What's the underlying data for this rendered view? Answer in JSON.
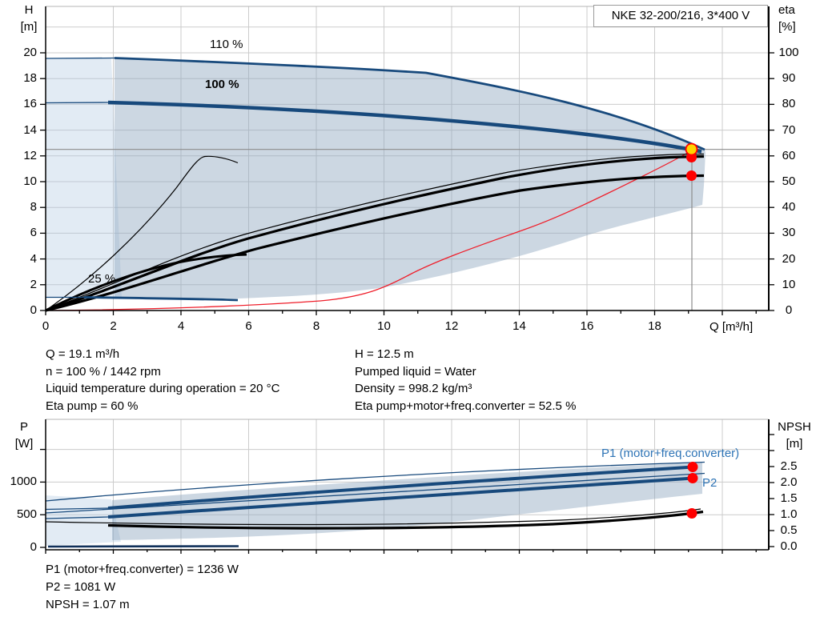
{
  "title_box": {
    "label": "NKE 32-200/216, 3*400 V"
  },
  "colors": {
    "curve_navy": "#17497c",
    "curve_black": "#000000",
    "curve_red": "#ef1f2b",
    "label_blue": "#2e74b6",
    "marker_red": "#ff0000",
    "marker_yellow": "#ffd400",
    "envelope_dark": "#cdd8e3",
    "envelope_light": "#e7eef6",
    "grid": "#cccccc",
    "duty_line_gray": "#8c8c8c"
  },
  "top_chart": {
    "y_left_title": [
      "H",
      "[m]"
    ],
    "y_right_title": [
      "eta",
      "[%]"
    ],
    "x_title": "Q [m³/h]",
    "y_left_ticks": [
      {
        "v": 0,
        "label": "0"
      },
      {
        "v": 2,
        "label": "2"
      },
      {
        "v": 4,
        "label": "4"
      },
      {
        "v": 6,
        "label": "6"
      },
      {
        "v": 8,
        "label": "8"
      },
      {
        "v": 10,
        "label": "10"
      },
      {
        "v": 12,
        "label": "12"
      },
      {
        "v": 14,
        "label": "14"
      },
      {
        "v": 16,
        "label": "16"
      },
      {
        "v": 18,
        "label": "18"
      },
      {
        "v": 20,
        "label": "20"
      }
    ],
    "y_right_ticks": [
      {
        "v": 0,
        "label": "0"
      },
      {
        "v": 10,
        "label": "10"
      },
      {
        "v": 20,
        "label": "20"
      },
      {
        "v": 30,
        "label": "30"
      },
      {
        "v": 40,
        "label": "40"
      },
      {
        "v": 50,
        "label": "50"
      },
      {
        "v": 60,
        "label": "60"
      },
      {
        "v": 70,
        "label": "70"
      },
      {
        "v": 80,
        "label": "80"
      },
      {
        "v": 90,
        "label": "90"
      },
      {
        "v": 100,
        "label": "100"
      }
    ],
    "x_ticks": [
      {
        "v": 0,
        "label": "0"
      },
      {
        "v": 2,
        "label": "2"
      },
      {
        "v": 4,
        "label": "4"
      },
      {
        "v": 6,
        "label": "6"
      },
      {
        "v": 8,
        "label": "8"
      },
      {
        "v": 10,
        "label": "10"
      },
      {
        "v": 12,
        "label": "12"
      },
      {
        "v": 14,
        "label": "14"
      },
      {
        "v": 16,
        "label": "16"
      },
      {
        "v": 18,
        "label": "18"
      }
    ],
    "curve_labels": {
      "speed_110": "110 %",
      "speed_100": "100 %",
      "speed_25": "25 %"
    }
  },
  "bottom_chart": {
    "y_left_title": [
      "P",
      "[W]"
    ],
    "y_right_title": [
      "NPSH",
      "[m]"
    ],
    "y_left_ticks": [
      {
        "v": 0,
        "label": "0"
      },
      {
        "v": 500,
        "label": "500"
      },
      {
        "v": 1000,
        "label": "1000"
      },
      {
        "v": 1500,
        "label": ""
      }
    ],
    "y_right_ticks": [
      {
        "v": 0,
        "label": "0.0"
      },
      {
        "v": 0.5,
        "label": "0.5"
      },
      {
        "v": 1,
        "label": "1.0"
      },
      {
        "v": 1.5,
        "label": "1.5"
      },
      {
        "v": 2,
        "label": "2.0"
      },
      {
        "v": 2.5,
        "label": "2.5"
      },
      {
        "v": 3,
        "label": ""
      },
      {
        "v": 3.5,
        "label": ""
      }
    ],
    "curve_labels": {
      "p1": "P1 (motor+freq.converter)",
      "p2": "P2"
    }
  },
  "info_top": {
    "left": [
      "Q = 19.1 m³/h",
      "n = 100 % / 1442 rpm",
      "Liquid temperature during operation = 20 °C",
      "Eta pump = 60 %"
    ],
    "right": [
      "H = 12.5 m",
      "Pumped liquid = Water",
      "Density = 998.2 kg/m³",
      "Eta pump+motor+freq.converter = 52.5 %"
    ]
  },
  "info_bottom": {
    "lines": [
      "P1 (motor+freq.converter) = 1236 W",
      "P2 = 1081 W",
      "NPSH = 1.07 m"
    ]
  },
  "chart_data": [
    {
      "type": "line",
      "title": "NKE 32-200/216, 3*400 V",
      "xlabel": "Q [m³/h]",
      "ylabel_left": "H [m]",
      "ylabel_right": "eta [%]",
      "x_range": [
        0,
        21.4
      ],
      "y_left_range": [
        0,
        23.6
      ],
      "y_right_range": [
        0,
        118
      ],
      "grid": true,
      "legend_position": "labels-on-curves",
      "series": [
        {
          "name": "H 110 %",
          "axis": "left",
          "color": "navy",
          "points": [
            [
              0,
              19.6
            ],
            [
              4,
              19.3
            ],
            [
              8,
              18.9
            ],
            [
              11.2,
              18.5
            ],
            [
              14,
              16.9
            ],
            [
              16,
              15.5
            ],
            [
              18,
              13.8
            ],
            [
              19.5,
              12.5
            ]
          ]
        },
        {
          "name": "H 100 %",
          "axis": "left",
          "color": "navy",
          "points": [
            [
              0,
              16.2
            ],
            [
              4,
              15.9
            ],
            [
              8,
              15.3
            ],
            [
              12,
              14.6
            ],
            [
              16,
              13.5
            ],
            [
              19.1,
              12.5
            ]
          ]
        },
        {
          "name": "H 25 %",
          "axis": "left",
          "color": "navy",
          "points": [
            [
              0,
              1.0
            ],
            [
              2,
              1.0
            ],
            [
              4,
              0.9
            ],
            [
              5.7,
              0.8
            ]
          ]
        },
        {
          "name": "Eta pump (100 %)",
          "axis": "right",
          "color": "black",
          "points": [
            [
              0,
              0
            ],
            [
              4,
              21
            ],
            [
              8,
              30
            ],
            [
              12,
              47
            ],
            [
              16,
              57
            ],
            [
              19.1,
              60
            ],
            [
              19.5,
              60
            ]
          ]
        },
        {
          "name": "Eta pump+motor+freq.converter",
          "axis": "right",
          "color": "black",
          "points": [
            [
              0,
              0
            ],
            [
              4,
              13
            ],
            [
              8,
              26
            ],
            [
              12,
              42
            ],
            [
              16,
              50
            ],
            [
              19.1,
              52.5
            ],
            [
              19.5,
              52.5
            ]
          ]
        },
        {
          "name": "Eta pump 25 %",
          "axis": "right",
          "color": "black",
          "points": [
            [
              0,
              0
            ],
            [
              2,
              28
            ],
            [
              4.6,
              60
            ],
            [
              5.7,
              57
            ]
          ]
        },
        {
          "name": "Eta total 25 %",
          "axis": "right",
          "color": "black",
          "points": [
            [
              0,
              0
            ],
            [
              2,
              12
            ],
            [
              4,
              20
            ],
            [
              6,
              21.7
            ]
          ]
        },
        {
          "name": "Eta along control curve",
          "axis": "right",
          "color": "red",
          "points": [
            [
              0,
              0
            ],
            [
              8,
              3
            ],
            [
              10,
              11
            ],
            [
              12,
              20.5
            ],
            [
              14,
              31
            ],
            [
              16,
              44
            ],
            [
              18,
              54.5
            ],
            [
              19.1,
              60
            ]
          ]
        }
      ],
      "duty_point": {
        "Q": 19.1,
        "H": 12.5
      },
      "markers": [
        {
          "label": "duty point",
          "Q": 19.1,
          "value": "H = 12.5 m",
          "color": "yellow"
        },
        {
          "label": "eta pump",
          "Q": 19.1,
          "value": "60 %",
          "color": "red"
        },
        {
          "label": "eta pump+motor+freq.converter",
          "Q": 19.1,
          "value": "52.5 %",
          "color": "red"
        }
      ],
      "envelope": "speed range 25–110 % shaded"
    },
    {
      "type": "line",
      "xlabel": "Q [m³/h]",
      "ylabel_left": "P [W]",
      "ylabel_right": "NPSH [m]",
      "x_range": [
        0,
        21.4
      ],
      "y_left_range": [
        0,
        1960
      ],
      "y_right_range": [
        0,
        4
      ],
      "grid": true,
      "series": [
        {
          "name": "P1 (motor+freq.converter)",
          "axis": "left",
          "color": "navy",
          "points": [
            [
              0,
              575
            ],
            [
              4,
              675
            ],
            [
              8,
              845
            ],
            [
              12,
              990
            ],
            [
              16,
              1125
            ],
            [
              19.1,
              1236
            ]
          ]
        },
        {
          "name": "P2",
          "axis": "left",
          "color": "navy",
          "points": [
            [
              0,
              465
            ],
            [
              4,
              527
            ],
            [
              8,
              686
            ],
            [
              12,
              833
            ],
            [
              16,
              956
            ],
            [
              19.1,
              1081
            ]
          ]
        },
        {
          "name": "P1 110 % (thin)",
          "axis": "left",
          "color": "navy",
          "points": [
            [
              0,
              710
            ],
            [
              10,
              985
            ],
            [
              19.5,
              1300
            ]
          ]
        },
        {
          "name": "P2 110 % (thin)",
          "axis": "left",
          "color": "navy",
          "points": [
            [
              0,
              527
            ],
            [
              10,
              760
            ],
            [
              19.5,
              1135
            ]
          ]
        },
        {
          "name": "P 25 %",
          "axis": "left",
          "color": "navy",
          "points": [
            [
              0,
              15
            ],
            [
              5.7,
              25
            ]
          ]
        },
        {
          "name": "NPSH",
          "axis": "right",
          "color": "black",
          "points": [
            [
              2,
              0.68
            ],
            [
              6,
              0.57
            ],
            [
              10,
              0.56
            ],
            [
              14,
              0.72
            ],
            [
              17,
              0.92
            ],
            [
              19.1,
              1.07
            ],
            [
              19.5,
              1.1
            ]
          ]
        }
      ],
      "markers": [
        {
          "label": "P1",
          "Q": 19.1,
          "value": "1236 W",
          "color": "red"
        },
        {
          "label": "P2",
          "Q": 19.1,
          "value": "1081 W",
          "color": "red"
        },
        {
          "label": "NPSH",
          "Q": 19.1,
          "value": "1.07 m",
          "color": "red"
        }
      ]
    }
  ]
}
